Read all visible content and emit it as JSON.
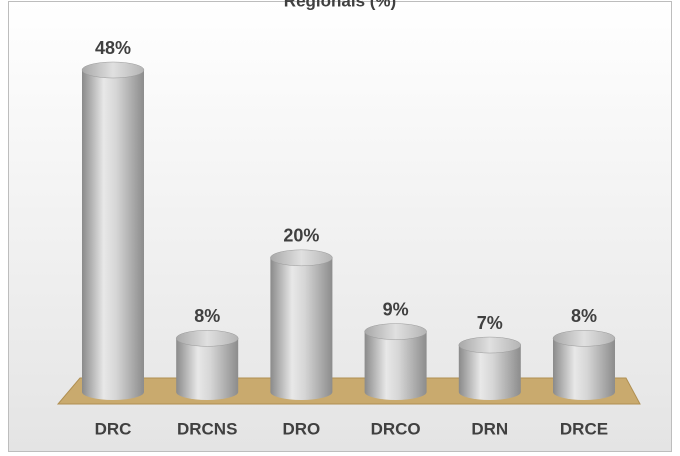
{
  "chart_data": {
    "type": "bar",
    "title": "Regionais (%)",
    "categories": [
      "DRC",
      "DRCNS",
      "DRO",
      "DRCO",
      "DRN",
      "DRCE"
    ],
    "values": [
      48,
      8,
      20,
      9,
      7,
      8
    ],
    "value_labels": [
      "48%",
      "8%",
      "20%",
      "9%",
      "7%",
      "8%"
    ],
    "color": "#b0b0b0"
  }
}
